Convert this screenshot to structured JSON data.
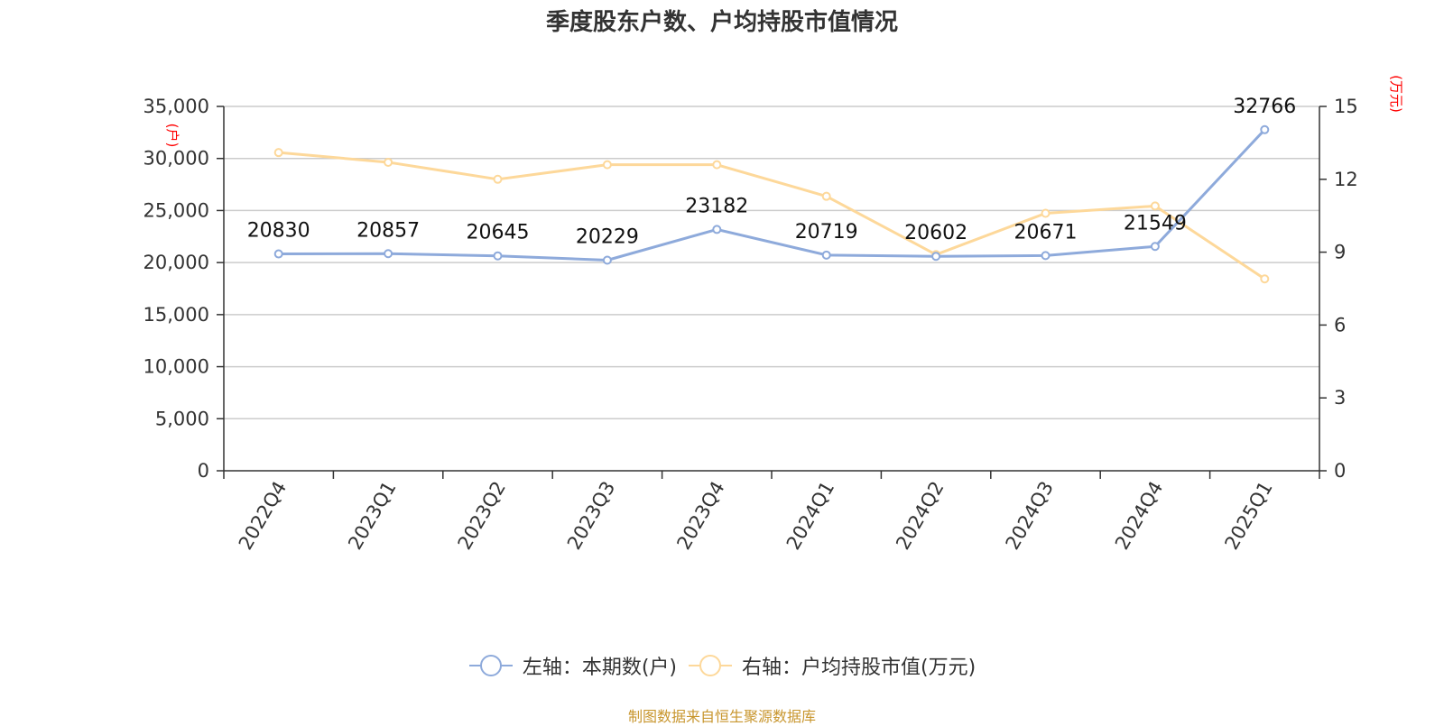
{
  "chart_data": {
    "type": "line",
    "title": "季度股东户数、户均持股市值情况",
    "categories": [
      "2022Q4",
      "2023Q1",
      "2023Q2",
      "2023Q3",
      "2023Q4",
      "2024Q1",
      "2024Q2",
      "2024Q3",
      "2024Q4",
      "2025Q1"
    ],
    "series": [
      {
        "name": "左轴：本期数(户)",
        "axis": "left",
        "color": "#8eaadb",
        "values": [
          20830,
          20857,
          20645,
          20229,
          23182,
          20719,
          20602,
          20671,
          21549,
          32766
        ],
        "data_labels": [
          "20830",
          "20857",
          "20645",
          "20229",
          "23182",
          "20719",
          "20602",
          "20671",
          "21549",
          "32766"
        ]
      },
      {
        "name": "右轴：户均持股市值(万元)",
        "axis": "right",
        "color": "#fdd89a",
        "values": [
          13.1,
          12.7,
          12.0,
          12.6,
          12.6,
          11.3,
          8.9,
          10.6,
          10.9,
          7.9
        ]
      }
    ],
    "left_axis": {
      "unit": "(户)",
      "ylim": [
        0,
        35000
      ],
      "ticks": [
        0,
        5000,
        10000,
        15000,
        20000,
        25000,
        30000,
        35000
      ],
      "tick_labels": [
        "0",
        "5,000",
        "10,000",
        "15,000",
        "20,000",
        "25,000",
        "30,000",
        "35,000"
      ]
    },
    "right_axis": {
      "unit": "(万元)",
      "ylim": [
        0,
        15
      ],
      "ticks": [
        0,
        3,
        6,
        9,
        12,
        15
      ],
      "tick_labels": [
        "0",
        "3",
        "6",
        "9",
        "12",
        "15"
      ]
    },
    "grid": true,
    "legend_position": "bottom-center",
    "source": "制图数据来自恒生聚源数据库"
  }
}
